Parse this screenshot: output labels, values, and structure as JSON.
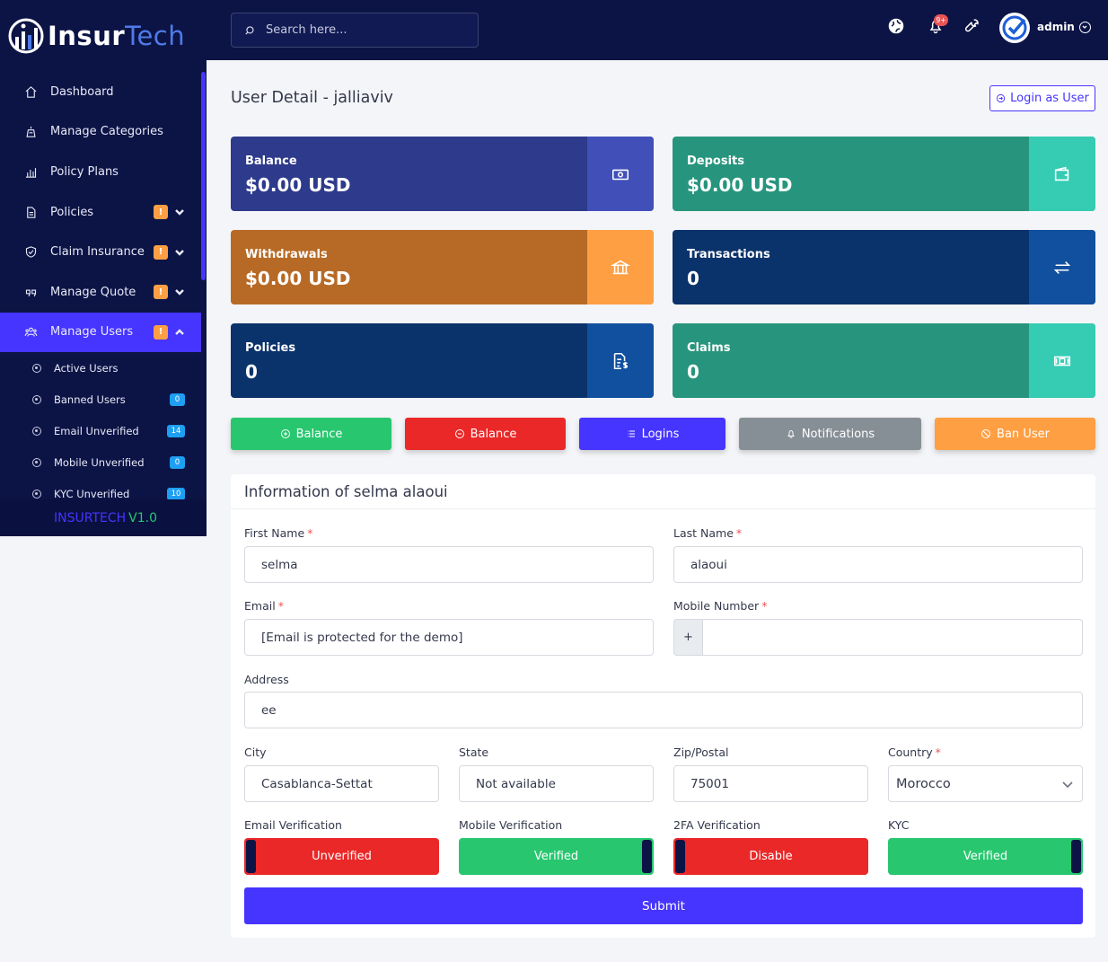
{
  "brand": {
    "name_a": "Insur",
    "name_b": "Tech"
  },
  "sidebar": {
    "items": [
      {
        "label": "Dashboard"
      },
      {
        "label": "Manage Categories"
      },
      {
        "label": "Policy Plans"
      },
      {
        "label": "Policies",
        "badge": "!"
      },
      {
        "label": "Claim Insurance",
        "badge": "!"
      },
      {
        "label": "Manage Quote",
        "badge": "!"
      },
      {
        "label": "Manage Users",
        "badge": "!"
      }
    ],
    "sub_items": [
      {
        "label": "Active Users"
      },
      {
        "label": "Banned Users",
        "count": "0"
      },
      {
        "label": "Email Unverified",
        "count": "14"
      },
      {
        "label": "Mobile Unverified",
        "count": "0"
      },
      {
        "label": "KYC Unverified",
        "count": "10"
      }
    ],
    "version_a": "INSURTECH",
    "version_b": "V1.0"
  },
  "topbar": {
    "search_placeholder": "Search here...",
    "notif_count": "9+",
    "admin_name": "admin"
  },
  "page": {
    "title": "User Detail - jalliaviv",
    "login_as_user": "Login as User"
  },
  "cards": [
    {
      "label": "Balance",
      "value": "$0.00 USD",
      "icon": "money-bill-icon",
      "color": "#2e3a8c",
      "side_color": "#4150b9"
    },
    {
      "label": "Deposits",
      "value": "$0.00 USD",
      "icon": "wallet-icon",
      "color": "#27957d",
      "side_color": "#35ccb3"
    },
    {
      "label": "Withdrawals",
      "value": "$0.00 USD",
      "icon": "bank-icon",
      "color": "#b76a25",
      "side_color": "#ff9f43"
    },
    {
      "label": "Transactions",
      "value": "0",
      "icon": "exchange-icon",
      "color": "#0b336b",
      "side_color": "#11509f"
    },
    {
      "label": "Policies",
      "value": "0",
      "icon": "file-invoice-icon",
      "color": "#0b336b",
      "side_color": "#11509f"
    },
    {
      "label": "Claims",
      "value": "0",
      "icon": "money-icon",
      "color": "#27957d",
      "side_color": "#35ccb3"
    }
  ],
  "actions": [
    {
      "label": "Balance",
      "color": "#28c76f"
    },
    {
      "label": "Balance",
      "color": "#ea2828"
    },
    {
      "label": "Logins",
      "color": "#4634ff"
    },
    {
      "label": "Notifications",
      "color": "#868e96"
    },
    {
      "label": "Ban User",
      "color": "#ff9f43"
    }
  ],
  "form": {
    "title": "Information of selma alaoui",
    "first_name_label": "First Name",
    "first_name": "selma",
    "last_name_label": "Last Name",
    "last_name": "alaoui",
    "email_label": "Email",
    "email": "[Email is protected for the demo]",
    "mobile_label": "Mobile Number",
    "mobile_prefix": "+",
    "mobile": "",
    "address_label": "Address",
    "address": "ee",
    "city_label": "City",
    "city": "Casablanca-Settat",
    "state_label": "State",
    "state": "Not available",
    "zip_label": "Zip/Postal",
    "zip": "75001",
    "country_label": "Country",
    "country": "Morocco",
    "required_mark": "*",
    "email_verif_label": "Email Verification",
    "email_verif": "Unverified",
    "mobile_verif_label": "Mobile Verification",
    "mobile_verif": "Verified",
    "twofa_label": "2FA Verification",
    "twofa": "Disable",
    "kyc_label": "KYC",
    "kyc": "Verified",
    "submit": "Submit"
  }
}
